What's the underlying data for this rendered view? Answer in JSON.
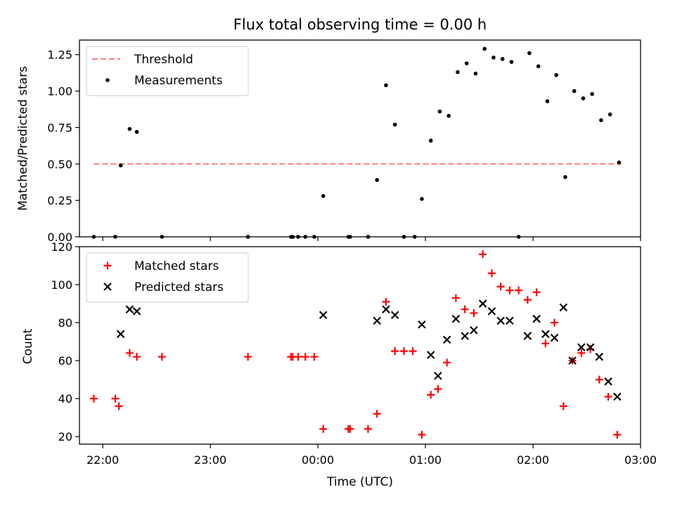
{
  "chart_data": [
    {
      "type": "scatter",
      "title": "Flux total observing time = 0.00 h",
      "ylabel": "Matched/Predicted stars",
      "xlabel": "",
      "xlim": [
        "21:47",
        "03:00"
      ],
      "ylim": [
        0,
        1.35
      ],
      "yticks": [
        "0.00",
        "0.25",
        "0.50",
        "0.75",
        "1.00",
        "1.25"
      ],
      "ytick_values": [
        0,
        0.25,
        0.5,
        0.75,
        1.0,
        1.25
      ],
      "legend_position": "upper left",
      "threshold": {
        "name": "Threshold",
        "value": 0.5,
        "x_range": [
          "21:55",
          "02:49"
        ],
        "color": "#ff7f7f",
        "style": "dashed"
      },
      "series": [
        {
          "name": "Measurements",
          "color": "#000000",
          "marker": "dot",
          "points": [
            [
              "21:55",
              0.0
            ],
            [
              "22:07",
              0.0
            ],
            [
              "22:10",
              0.49
            ],
            [
              "22:15",
              0.74
            ],
            [
              "22:19",
              0.72
            ],
            [
              "22:33",
              0.0
            ],
            [
              "23:21",
              0.0
            ],
            [
              "23:45",
              0.0
            ],
            [
              "23:46",
              0.0
            ],
            [
              "23:49",
              0.0
            ],
            [
              "23:53",
              0.0
            ],
            [
              "23:58",
              0.0
            ],
            [
              "00:03",
              0.28
            ],
            [
              "00:17",
              0.0
            ],
            [
              "00:18",
              0.0
            ],
            [
              "00:28",
              0.0
            ],
            [
              "00:33",
              0.39
            ],
            [
              "00:38",
              1.04
            ],
            [
              "00:43",
              0.77
            ],
            [
              "00:48",
              0.0
            ],
            [
              "00:54",
              0.0
            ],
            [
              "00:58",
              0.26
            ],
            [
              "01:03",
              0.66
            ],
            [
              "01:08",
              0.86
            ],
            [
              "01:13",
              0.83
            ],
            [
              "01:18",
              1.13
            ],
            [
              "01:23",
              1.19
            ],
            [
              "01:28",
              1.12
            ],
            [
              "01:33",
              1.29
            ],
            [
              "01:38",
              1.23
            ],
            [
              "01:43",
              1.22
            ],
            [
              "01:48",
              1.2
            ],
            [
              "01:52",
              0.0
            ],
            [
              "01:58",
              1.26
            ],
            [
              "02:03",
              1.17
            ],
            [
              "02:08",
              0.93
            ],
            [
              "02:13",
              1.11
            ],
            [
              "02:18",
              0.41
            ],
            [
              "02:23",
              1.0
            ],
            [
              "02:28",
              0.95
            ],
            [
              "02:33",
              0.98
            ],
            [
              "02:38",
              0.8
            ],
            [
              "02:43",
              0.84
            ],
            [
              "02:48",
              0.51
            ]
          ]
        }
      ]
    },
    {
      "type": "scatter",
      "title": "",
      "ylabel": "Count",
      "xlabel": "Time (UTC)",
      "xlim": [
        "21:47",
        "03:00"
      ],
      "ylim": [
        16,
        120
      ],
      "yticks": [
        "20",
        "40",
        "60",
        "80",
        "100",
        "120"
      ],
      "ytick_values": [
        20,
        40,
        60,
        80,
        100,
        120
      ],
      "xticks": [
        "22:00",
        "23:00",
        "00:00",
        "01:00",
        "02:00",
        "03:00"
      ],
      "legend_position": "upper left",
      "series": [
        {
          "name": "Matched stars",
          "color": "#ff0000",
          "marker": "plus",
          "points": [
            [
              "21:55",
              40
            ],
            [
              "22:07",
              40
            ],
            [
              "22:09",
              36
            ],
            [
              "22:15",
              64
            ],
            [
              "22:19",
              62
            ],
            [
              "22:33",
              62
            ],
            [
              "23:21",
              62
            ],
            [
              "23:45",
              62
            ],
            [
              "23:46",
              62
            ],
            [
              "23:49",
              62
            ],
            [
              "23:53",
              62
            ],
            [
              "23:58",
              62
            ],
            [
              "00:03",
              24
            ],
            [
              "00:17",
              24
            ],
            [
              "00:18",
              24
            ],
            [
              "00:28",
              24
            ],
            [
              "00:33",
              32
            ],
            [
              "00:38",
              91
            ],
            [
              "00:43",
              65
            ],
            [
              "00:48",
              65
            ],
            [
              "00:53",
              65
            ],
            [
              "00:58",
              21
            ],
            [
              "01:03",
              42
            ],
            [
              "01:07",
              45
            ],
            [
              "01:12",
              59
            ],
            [
              "01:17",
              93
            ],
            [
              "01:22",
              87
            ],
            [
              "01:27",
              85
            ],
            [
              "01:32",
              116
            ],
            [
              "01:37",
              106
            ],
            [
              "01:42",
              99
            ],
            [
              "01:47",
              97
            ],
            [
              "01:52",
              97
            ],
            [
              "01:57",
              92
            ],
            [
              "02:02",
              96
            ],
            [
              "02:07",
              69
            ],
            [
              "02:12",
              80
            ],
            [
              "02:17",
              36
            ],
            [
              "02:22",
              60
            ],
            [
              "02:27",
              64
            ],
            [
              "02:32",
              66
            ],
            [
              "02:37",
              50
            ],
            [
              "02:42",
              41
            ],
            [
              "02:47",
              21
            ]
          ]
        },
        {
          "name": "Predicted stars",
          "color": "#000000",
          "marker": "x",
          "points": [
            [
              "22:10",
              74
            ],
            [
              "22:15",
              87
            ],
            [
              "22:19",
              86
            ],
            [
              "00:03",
              84
            ],
            [
              "00:33",
              81
            ],
            [
              "00:38",
              87
            ],
            [
              "00:43",
              84
            ],
            [
              "00:58",
              79
            ],
            [
              "01:03",
              63
            ],
            [
              "01:07",
              52
            ],
            [
              "01:12",
              71
            ],
            [
              "01:17",
              82
            ],
            [
              "01:22",
              73
            ],
            [
              "01:27",
              76
            ],
            [
              "01:32",
              90
            ],
            [
              "01:37",
              86
            ],
            [
              "01:42",
              81
            ],
            [
              "01:47",
              81
            ],
            [
              "01:57",
              73
            ],
            [
              "02:02",
              82
            ],
            [
              "02:07",
              74
            ],
            [
              "02:12",
              72
            ],
            [
              "02:17",
              88
            ],
            [
              "02:22",
              60
            ],
            [
              "02:27",
              67
            ],
            [
              "02:32",
              67
            ],
            [
              "02:37",
              62
            ],
            [
              "02:42",
              49
            ],
            [
              "02:47",
              41
            ]
          ]
        }
      ]
    }
  ]
}
